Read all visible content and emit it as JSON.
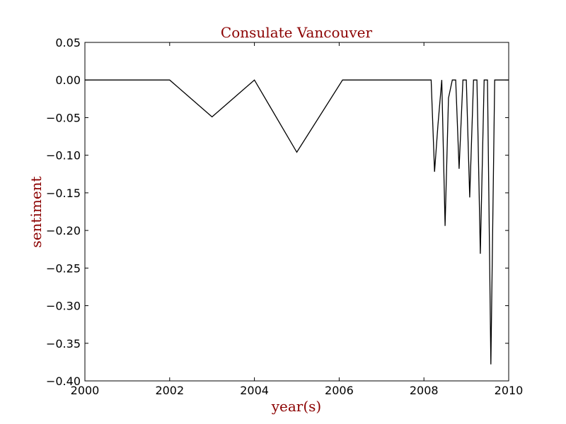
{
  "chart_data": {
    "type": "line",
    "title": "Consulate Vancouver",
    "xlabel": "year(s)",
    "ylabel": "sentiment",
    "xlim": [
      2000,
      2010
    ],
    "ylim": [
      -0.4,
      0.05
    ],
    "xticks": [
      "2000",
      "2002",
      "2004",
      "2006",
      "2008",
      "2010"
    ],
    "yticks": [
      "0.05",
      "0.00",
      "−0.05",
      "−0.10",
      "−0.15",
      "−0.20",
      "−0.25",
      "−0.30",
      "−0.35",
      "−0.40"
    ],
    "grid": false,
    "legend": "none",
    "colors": {
      "title": "#8b0000",
      "axis_label": "#8b0000",
      "line": "#000000"
    },
    "series": [
      {
        "x": [
          2000,
          2002,
          2003,
          2004,
          2005,
          2006.08,
          2008.17,
          2008.25,
          2008.33,
          2008.42,
          2008.5,
          2008.58,
          2008.67,
          2008.75,
          2008.83,
          2008.92,
          2009.0,
          2009.08,
          2009.17,
          2009.25,
          2009.33,
          2009.42,
          2009.5,
          2009.58,
          2009.67,
          2009.75,
          2009.83,
          2009.92,
          2010
        ],
        "y": [
          0,
          0,
          -0.049,
          0,
          -0.096,
          0,
          0,
          -0.122,
          -0.06,
          0,
          -0.194,
          -0.024,
          0,
          0,
          -0.118,
          0,
          0,
          -0.156,
          0,
          0,
          -0.231,
          0,
          0,
          -0.378,
          0,
          0,
          0,
          0,
          0
        ]
      }
    ]
  }
}
